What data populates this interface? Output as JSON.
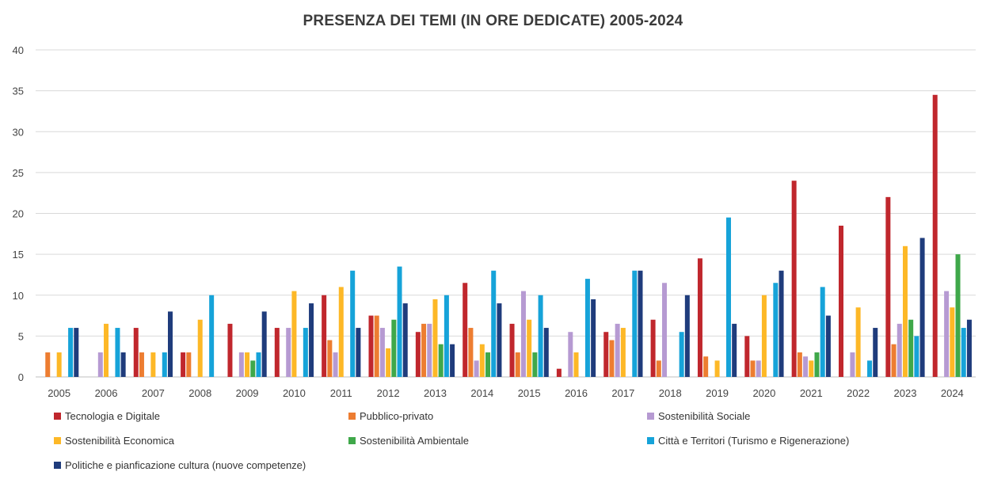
{
  "chart_data": {
    "type": "bar",
    "title": "PRESENZA DEI TEMI (IN ORE DEDICATE) 2005-2024",
    "xlabel": "",
    "ylabel": "",
    "ylim": [
      0,
      40
    ],
    "yticks": [
      0,
      5,
      10,
      15,
      20,
      25,
      30,
      35,
      40
    ],
    "grid": true,
    "legend_position": "bottom",
    "categories": [
      "2005",
      "2006",
      "2007",
      "2008",
      "2009",
      "2010",
      "2011",
      "2012",
      "2013",
      "2014",
      "2015",
      "2016",
      "2017",
      "2018",
      "2019",
      "2020",
      "2021",
      "2022",
      "2023",
      "2024"
    ],
    "series": [
      {
        "name": "Tecnologia e Digitale",
        "color": "#c0272d",
        "values": [
          0,
          0,
          6,
          3,
          6.5,
          6,
          10,
          7.5,
          5.5,
          11.5,
          6.5,
          1,
          5.5,
          7,
          14.5,
          5,
          24,
          18.5,
          22,
          34.5
        ]
      },
      {
        "name": "Pubblico-privato",
        "color": "#ed7d31",
        "values": [
          3,
          0,
          3,
          3,
          0,
          0,
          4.5,
          7.5,
          6.5,
          6,
          3,
          0,
          4.5,
          2,
          2.5,
          2,
          3,
          0,
          4,
          0
        ]
      },
      {
        "name": "Sostenibilità Sociale",
        "color": "#b69ad2",
        "values": [
          0,
          3,
          0,
          0,
          3,
          6,
          3,
          6,
          6.5,
          2,
          10.5,
          5.5,
          6.5,
          11.5,
          0,
          2,
          2.5,
          3,
          6.5,
          10.5
        ]
      },
      {
        "name": "Sostenibilità Economica",
        "color": "#fdb827",
        "values": [
          3,
          6.5,
          3,
          7,
          3,
          10.5,
          11,
          3.5,
          9.5,
          4,
          7,
          3,
          6,
          0,
          2,
          10,
          2,
          8.5,
          16,
          8.5
        ]
      },
      {
        "name": "Sostenibilità Ambientale",
        "color": "#3fa84a",
        "values": [
          0,
          0,
          0,
          0,
          2,
          0,
          0,
          7,
          4,
          3,
          3,
          0,
          0,
          0,
          0,
          0,
          3,
          0,
          7,
          15
        ]
      },
      {
        "name": "Città e Territori (Turismo e Rigenerazione)",
        "color": "#16a3d9",
        "values": [
          6,
          6,
          3,
          10,
          3,
          6,
          13,
          13.5,
          10,
          13,
          10,
          12,
          13,
          5.5,
          19.5,
          11.5,
          11,
          2,
          5,
          6
        ]
      },
      {
        "name": "Politiche e pianficazione  cultura (nuove competenze)",
        "color": "#1f3c7c",
        "values": [
          6,
          3,
          8,
          0,
          8,
          9,
          6,
          9,
          4,
          9,
          6,
          9.5,
          13,
          10,
          6.5,
          13,
          7.5,
          6,
          17,
          7
        ]
      }
    ]
  }
}
